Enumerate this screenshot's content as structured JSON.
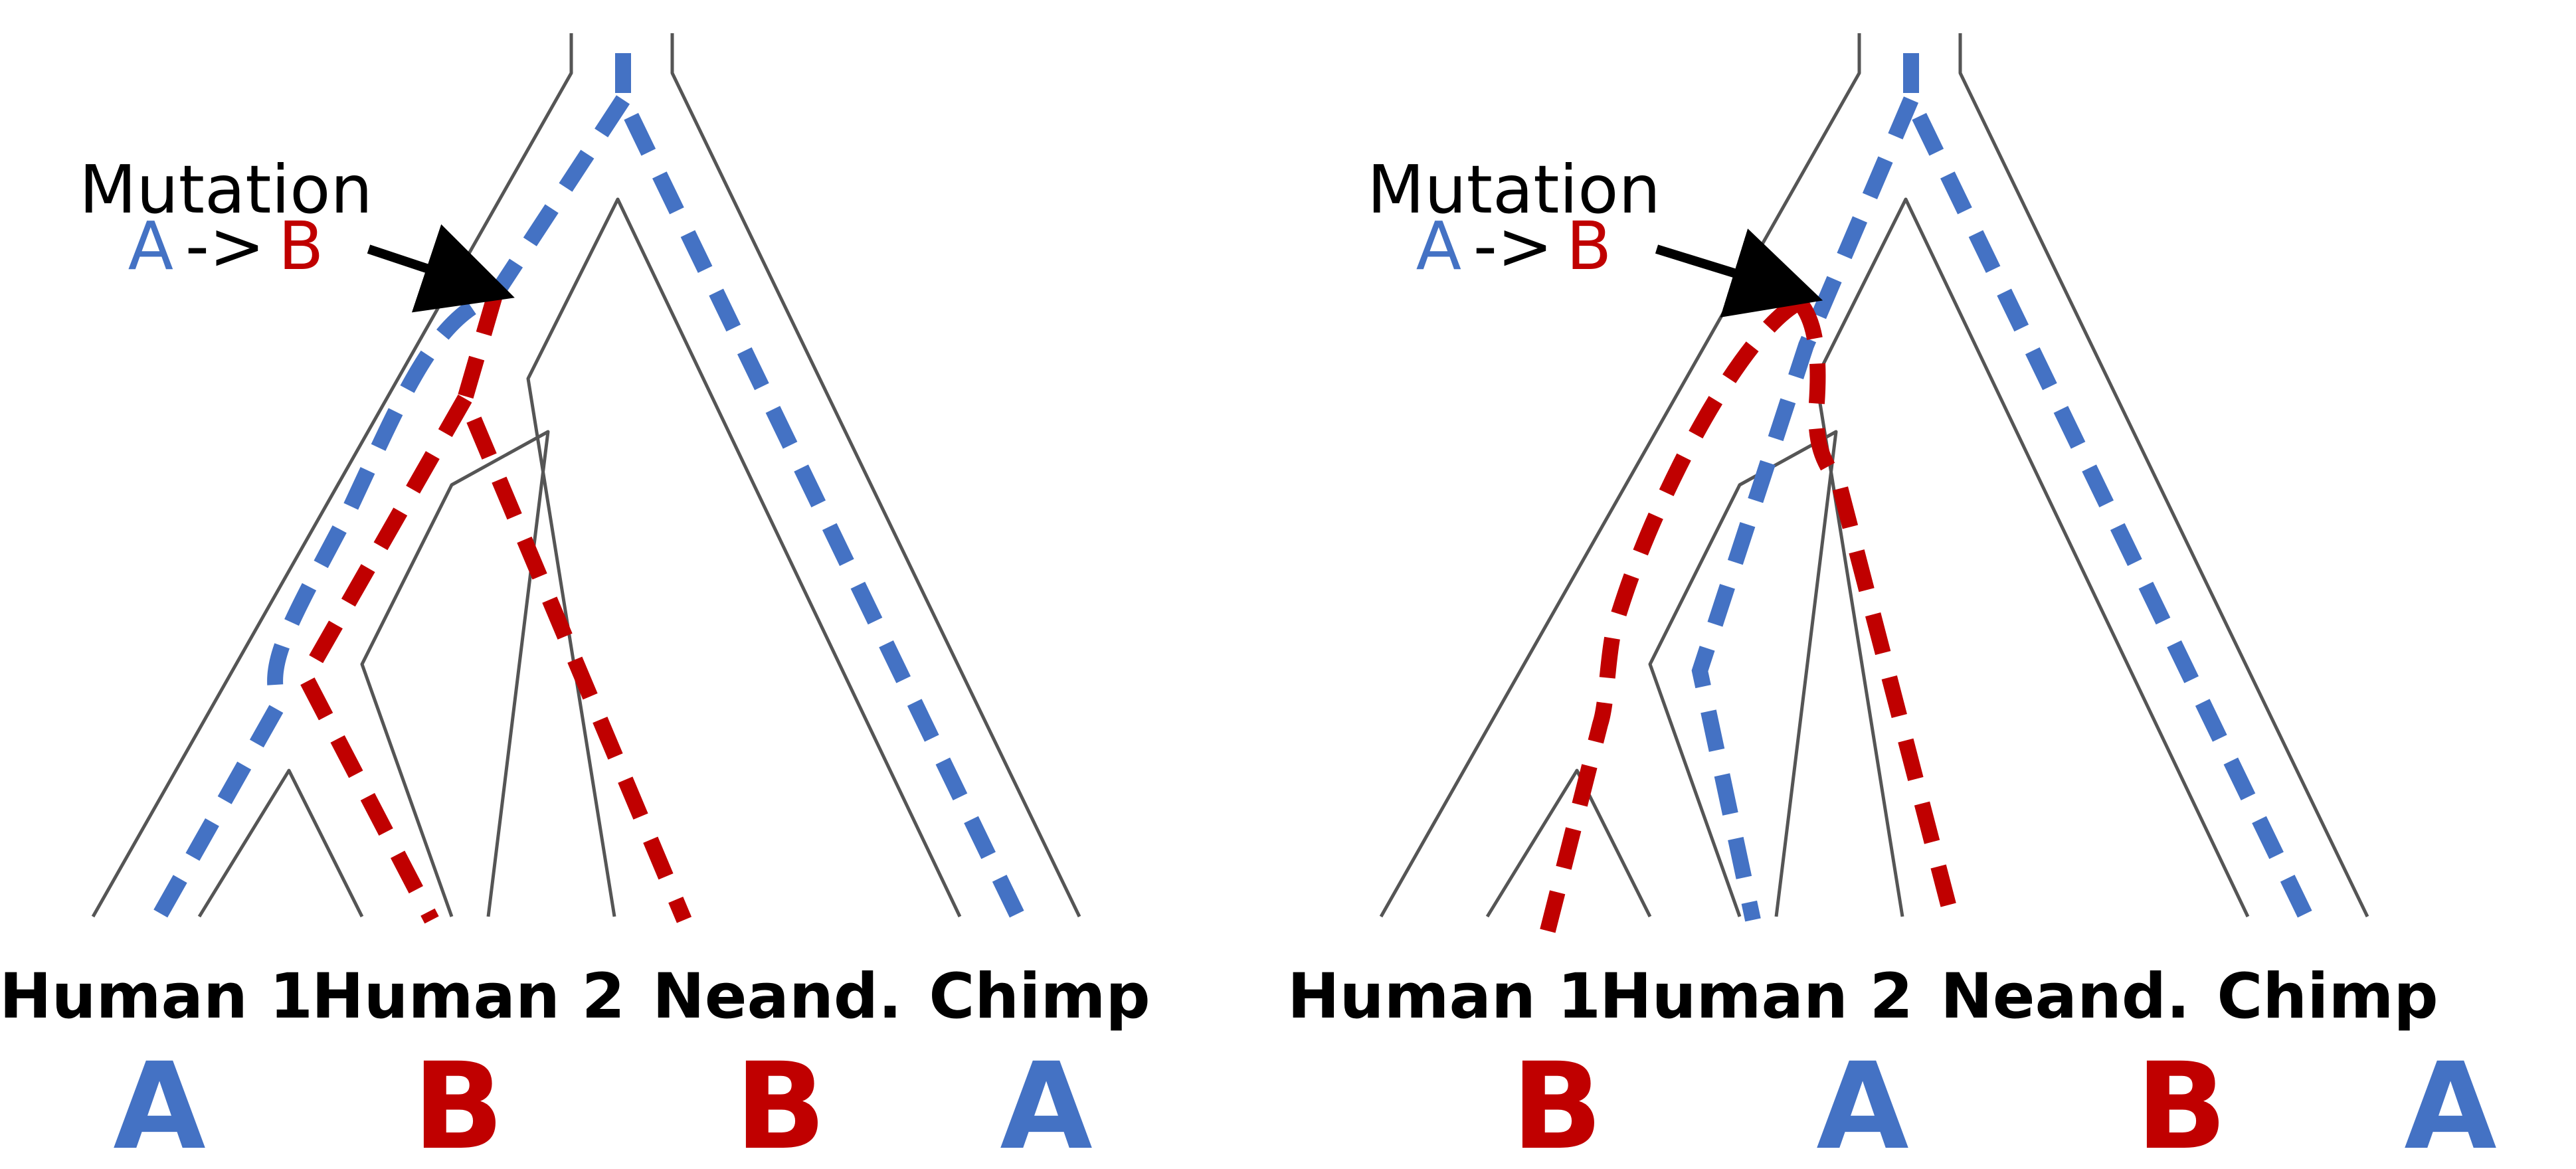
{
  "colors": {
    "blue": "#4472c4",
    "red": "#c00000",
    "outline": "#555555",
    "arrow": "#000000"
  },
  "mutation": {
    "title": "Mutation",
    "from": "A",
    "arrow_text": "->",
    "to": "B"
  },
  "taxa": [
    "Human 1",
    "Human 2",
    "Neand.",
    "Chimp"
  ],
  "panels": [
    {
      "alleles": [
        "A",
        "B",
        "B",
        "A"
      ]
    },
    {
      "alleles": [
        "B",
        "A",
        "B",
        "A"
      ]
    }
  ]
}
